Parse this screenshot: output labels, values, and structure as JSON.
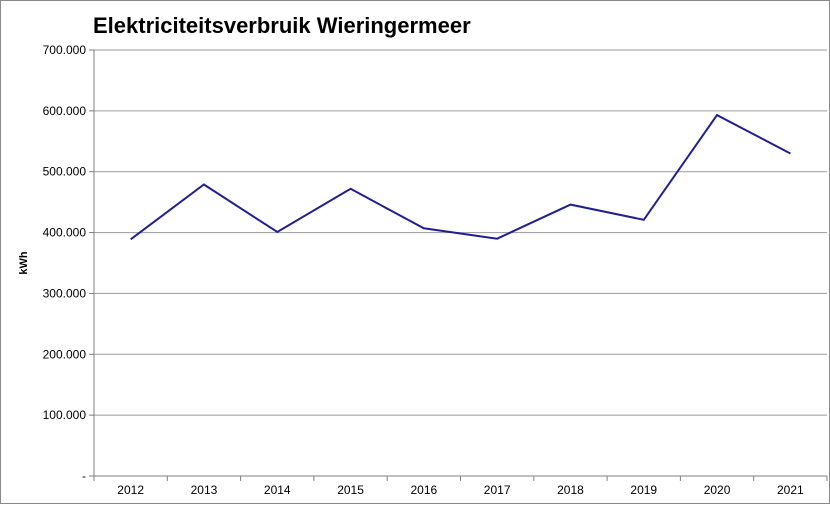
{
  "chart_data": {
    "type": "line",
    "title": "Elektriciteitsverbruik Wieringermeer",
    "xlabel": "",
    "ylabel": "kWh",
    "categories": [
      "2012",
      "2013",
      "2014",
      "2015",
      "2016",
      "2017",
      "2018",
      "2019",
      "2020",
      "2021"
    ],
    "series": [
      {
        "values": [
          389000,
          479000,
          401000,
          472000,
          407000,
          390000,
          446000,
          421000,
          593000,
          530000
        ]
      }
    ],
    "ylim": [
      0,
      700000
    ],
    "yticks": [
      0,
      100000,
      200000,
      300000,
      400000,
      500000,
      600000,
      700000
    ],
    "ytick_labels": [
      "-",
      "100.000",
      "200.000",
      "300.000",
      "400.000",
      "500.000",
      "600.000",
      "700.000"
    ],
    "grid": true,
    "legend": "none",
    "colors": {
      "line": "#1f1f8f",
      "grid": "#9a9a9a",
      "axis": "#7f7f7f"
    }
  }
}
